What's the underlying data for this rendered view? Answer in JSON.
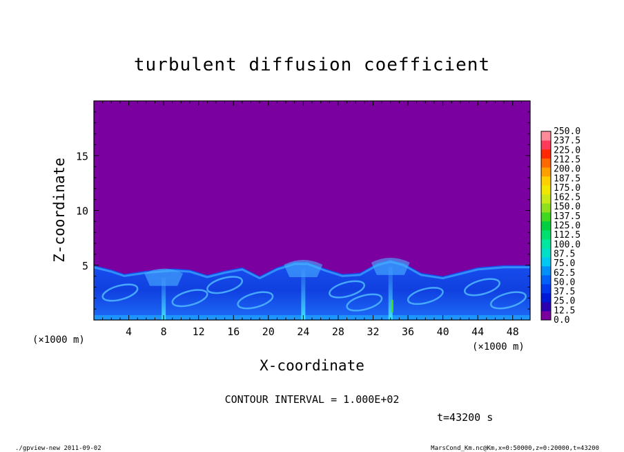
{
  "chart_data": {
    "type": "heatmap",
    "title": "turbulent diffusion coefficient",
    "xlabel": "X-coordinate",
    "ylabel": "Z-coordinate",
    "x_unit": "(×1000 m)",
    "y_unit": "(×1000 m)",
    "xlim": [
      0,
      50
    ],
    "ylim": [
      0,
      20
    ],
    "x_ticks": [
      4,
      8,
      12,
      16,
      20,
      24,
      28,
      32,
      36,
      40,
      44,
      48
    ],
    "y_ticks": [
      5,
      10,
      15
    ],
    "background_value": 0.0,
    "turbulent_layer_top": [
      {
        "x": 0,
        "z": 5.0
      },
      {
        "x": 2,
        "z": 4.6
      },
      {
        "x": 3.5,
        "z": 4.2
      },
      {
        "x": 6,
        "z": 4.5
      },
      {
        "x": 9,
        "z": 4.7
      },
      {
        "x": 11,
        "z": 4.6
      },
      {
        "x": 13,
        "z": 4.1
      },
      {
        "x": 15,
        "z": 4.5
      },
      {
        "x": 17,
        "z": 4.8
      },
      {
        "x": 19,
        "z": 4.0
      },
      {
        "x": 21,
        "z": 4.8
      },
      {
        "x": 23,
        "z": 5.3
      },
      {
        "x": 24.5,
        "z": 5.3
      },
      {
        "x": 26.5,
        "z": 4.7
      },
      {
        "x": 28.5,
        "z": 4.2
      },
      {
        "x": 30.5,
        "z": 4.3
      },
      {
        "x": 32.5,
        "z": 5.2
      },
      {
        "x": 34,
        "z": 5.5
      },
      {
        "x": 35.5,
        "z": 5.2
      },
      {
        "x": 37.5,
        "z": 4.3
      },
      {
        "x": 40,
        "z": 4.0
      },
      {
        "x": 42,
        "z": 4.4
      },
      {
        "x": 44,
        "z": 4.8
      },
      {
        "x": 47,
        "z": 5.0
      },
      {
        "x": 50,
        "z": 5.0
      }
    ],
    "plumes": [
      {
        "x": 8,
        "z_top": 4.5
      },
      {
        "x": 24,
        "z_top": 5.3
      },
      {
        "x": 34,
        "z_top": 5.5
      }
    ],
    "peak": {
      "x": 34.2,
      "z": 1.2
    },
    "colorbar": {
      "levels": [
        "0.0",
        "12.5",
        "25.0",
        "37.5",
        "50.0",
        "62.5",
        "75.0",
        "87.5",
        "100.0",
        "112.5",
        "125.0",
        "137.5",
        "150.0",
        "162.5",
        "175.0",
        "187.5",
        "200.0",
        "212.5",
        "225.0",
        "237.5",
        "250.0"
      ],
      "colors": [
        "#7a00a0",
        "#2a00b0",
        "#0018d8",
        "#0038ee",
        "#0060f8",
        "#0090f8",
        "#00c8f0",
        "#00e0c8",
        "#00e8a0",
        "#00e070",
        "#00d040",
        "#40d820",
        "#90e020",
        "#c8e818",
        "#f0e800",
        "#ffd000",
        "#ffa000",
        "#ff6a00",
        "#ff2800",
        "#ff3a5a",
        "#ff8a9a"
      ]
    }
  },
  "contour_interval": "CONTOUR INTERVAL = 1.000E+02",
  "time_label": "t=43200 s",
  "footer_left": "./gpview-new   2011-09-02",
  "footer_right": "MarsCond_Km.nc@Km,x=0:50000,z=0:20000,t=43200"
}
